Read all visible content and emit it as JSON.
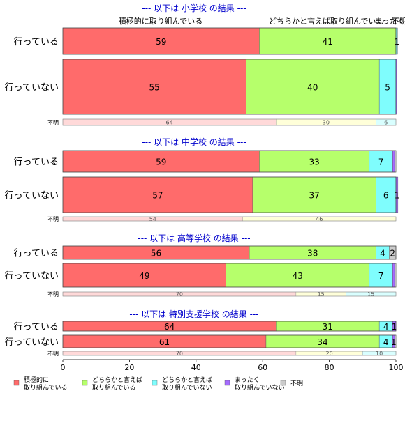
{
  "chart_data": {
    "type": "bar",
    "orientation": "horizontal-stacked",
    "xlim": [
      0,
      100
    ],
    "x_ticks": [
      0,
      20,
      40,
      60,
      80,
      100
    ],
    "grid": false,
    "legend_position": "bottom",
    "series": [
      {
        "name": "積極的に\n取り組んでいる",
        "color": "#ff6b6b"
      },
      {
        "name": "どちらかと言えば\n取り組んでいる",
        "color": "#b6ff6b"
      },
      {
        "name": "どちらかと言えば\n取り組んでいない",
        "color": "#7ffdfd"
      },
      {
        "name": "まったく\n取り組んでいない",
        "color": "#a56bff"
      },
      {
        "name": "不明",
        "color": "#cccccc"
      }
    ],
    "header_labels": [
      "積極的に取り組んでいる",
      "どちらかと言えば取り組んでい...",
      "まったく",
      "不明"
    ],
    "groups": [
      {
        "title": "--- 以下は 小学校 の結果 ---",
        "rows": [
          {
            "category": "行っている",
            "values": [
              59,
              41,
              0.5,
              0,
              0
            ],
            "labels": [
              "59",
              "41",
              "1",
              "",
              ""
            ]
          },
          {
            "category": "行っていない",
            "values": [
              55,
              40,
              5,
              0.3,
              0
            ],
            "labels": [
              "55",
              "40",
              "5",
              "",
              ""
            ]
          }
        ],
        "unknown": {
          "category": "不明",
          "values": [
            64,
            30,
            6
          ],
          "labels": [
            "64",
            "30",
            "6"
          ]
        }
      },
      {
        "title": "--- 以下は 中学校 の結果 ---",
        "rows": [
          {
            "category": "行っている",
            "values": [
              59,
              33,
              7,
              0.6,
              0
            ],
            "labels": [
              "59",
              "33",
              "7",
              "",
              ""
            ]
          },
          {
            "category": "行っていない",
            "values": [
              57,
              37,
              6,
              0.6,
              0
            ],
            "labels": [
              "57",
              "37",
              "6",
              "1",
              ""
            ]
          }
        ],
        "unknown": {
          "category": "不明",
          "values": [
            54,
            46,
            0
          ],
          "labels": [
            "54",
            "46",
            ""
          ]
        }
      },
      {
        "title": "--- 以下は 高等学校 の結果 ---",
        "rows": [
          {
            "category": "行っている",
            "values": [
              56,
              38,
              4,
              0,
              2
            ],
            "labels": [
              "56",
              "38",
              "4",
              "",
              "2"
            ]
          },
          {
            "category": "行っていない",
            "values": [
              49,
              43,
              7,
              0.6,
              0
            ],
            "labels": [
              "49",
              "43",
              "7",
              "",
              ""
            ]
          }
        ],
        "unknown": {
          "category": "不明",
          "values": [
            70,
            15,
            15
          ],
          "labels": [
            "70",
            "15",
            "15"
          ]
        }
      },
      {
        "title": "--- 以下は 特別支援学校 の結果 ---",
        "rows": [
          {
            "category": "行っている",
            "values": [
              64,
              31,
              4,
              1,
              0
            ],
            "labels": [
              "64",
              "31",
              "4",
              "1",
              ""
            ]
          },
          {
            "category": "行っていない",
            "values": [
              61,
              34,
              4,
              0.6,
              0
            ],
            "labels": [
              "61",
              "34",
              "4",
              "1",
              ""
            ]
          }
        ],
        "unknown": {
          "category": "不明",
          "values": [
            70,
            20,
            10
          ],
          "labels": [
            "70",
            "20",
            "10"
          ]
        }
      }
    ]
  }
}
